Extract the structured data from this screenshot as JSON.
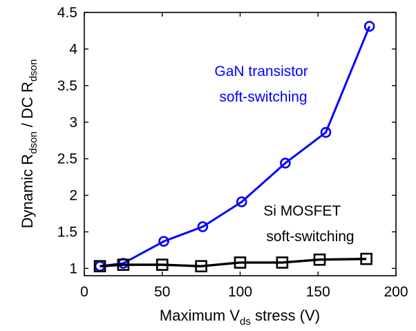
{
  "chart_data": {
    "type": "line",
    "xlabel": {
      "pre": "Maximum V",
      "sub": "ds",
      "post": " stress (V)"
    },
    "ylabel": {
      "p1": "Dynamic R",
      "s1": "dson",
      "p2": " / DC R",
      "s2": "dson"
    },
    "xlim": [
      0,
      200
    ],
    "ylim": [
      0.9,
      4.5
    ],
    "xticks": [
      0,
      50,
      100,
      150,
      200
    ],
    "yticks": [
      1,
      1.5,
      2,
      2.5,
      3,
      3.5,
      4,
      4.5
    ],
    "xtick_labels": [
      "0",
      "50",
      "100",
      "150",
      "200"
    ],
    "ytick_labels": [
      "1",
      "1.5",
      "2",
      "2.5",
      "3",
      "3.5",
      "4",
      "4.5"
    ],
    "grid": false,
    "series": [
      {
        "key": "gan",
        "color": "#0000ff",
        "marker": "circle",
        "x": [
          10,
          25,
          51,
          76,
          101,
          129,
          155,
          183
        ],
        "y": [
          1.03,
          1.07,
          1.37,
          1.57,
          1.91,
          2.44,
          2.86,
          4.31
        ]
      },
      {
        "key": "si",
        "color": "#000000",
        "marker": "square",
        "x": [
          10,
          25,
          50,
          75,
          100,
          127,
          151,
          181
        ],
        "y": [
          1.03,
          1.05,
          1.05,
          1.03,
          1.08,
          1.08,
          1.12,
          1.13
        ]
      }
    ],
    "annotations": [
      {
        "series": "gan",
        "color": "#0000ff",
        "lines": [
          "GaN transistor",
          "soft-switching"
        ]
      },
      {
        "series": "si",
        "color": "#000000",
        "lines": [
          "Si MOSFET",
          "soft-switching"
        ]
      }
    ]
  }
}
